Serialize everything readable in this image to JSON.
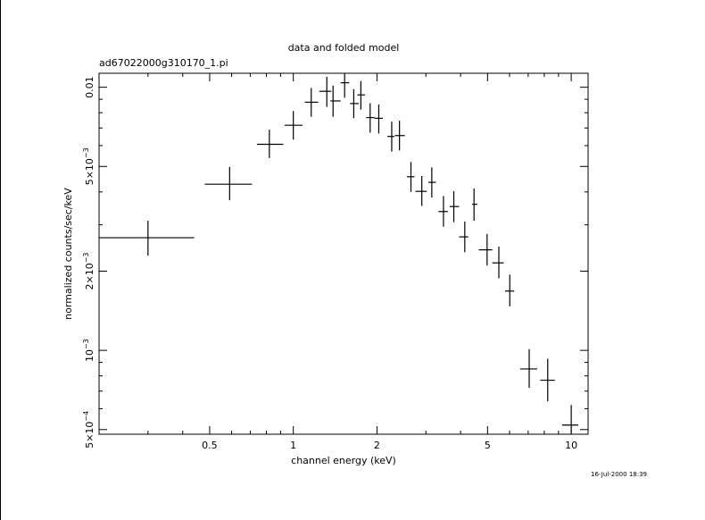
{
  "chart_data": {
    "type": "scatter",
    "title": "data and folded model",
    "subtitle": "ad67022000g310170_1.pi",
    "xlabel": "channel energy (keV)",
    "ylabel": "normalized counts/sec/keV",
    "x_scale": "log",
    "y_scale": "log",
    "xlim": [
      0.2,
      11.5
    ],
    "ylim": [
      0.00048,
      0.0113
    ],
    "grid": false,
    "legend": "none",
    "x_ticks": [
      {
        "value": 0.5,
        "label": "0.5"
      },
      {
        "value": 1,
        "label": "1"
      },
      {
        "value": 2,
        "label": "2"
      },
      {
        "value": 5,
        "label": "5"
      },
      {
        "value": 10,
        "label": "10"
      }
    ],
    "y_ticks": [
      {
        "value": 0.0005,
        "mantissa": "5×10",
        "exponent": "−4"
      },
      {
        "value": 0.001,
        "mantissa": "10",
        "exponent": "−3"
      },
      {
        "value": 0.002,
        "mantissa": "2×10",
        "exponent": "−3"
      },
      {
        "value": 0.005,
        "mantissa": "5×10",
        "exponent": "−3"
      },
      {
        "value": 0.01,
        "mantissa": "0.01",
        "exponent": ""
      }
    ],
    "series": [
      {
        "points": [
          {
            "x": 0.3,
            "x_lo": 0.2,
            "x_hi": 0.44,
            "y": 0.00268,
            "y_lo": 0.00229,
            "y_hi": 0.00311
          },
          {
            "x": 0.59,
            "x_lo": 0.48,
            "x_hi": 0.71,
            "y": 0.00428,
            "y_lo": 0.00372,
            "y_hi": 0.00498
          },
          {
            "x": 0.82,
            "x_lo": 0.74,
            "x_hi": 0.92,
            "y": 0.00607,
            "y_lo": 0.00538,
            "y_hi": 0.0069
          },
          {
            "x": 1.0,
            "x_lo": 0.93,
            "x_hi": 1.08,
            "y": 0.00717,
            "y_lo": 0.00632,
            "y_hi": 0.00812
          },
          {
            "x": 1.16,
            "x_lo": 1.1,
            "x_hi": 1.23,
            "y": 0.00877,
            "y_lo": 0.00772,
            "y_hi": 0.00994
          },
          {
            "x": 1.32,
            "x_lo": 1.24,
            "x_hi": 1.37,
            "y": 0.00965,
            "y_lo": 0.00842,
            "y_hi": 0.01095
          },
          {
            "x": 1.39,
            "x_lo": 1.36,
            "x_hi": 1.48,
            "y": 0.00887,
            "y_lo": 0.00772,
            "y_hi": 0.01015
          },
          {
            "x": 1.53,
            "x_lo": 1.48,
            "x_hi": 1.59,
            "y": 0.0104,
            "y_lo": 0.00912,
            "y_hi": 0.01135
          },
          {
            "x": 1.65,
            "x_lo": 1.6,
            "x_hi": 1.72,
            "y": 0.00867,
            "y_lo": 0.00762,
            "y_hi": 0.00984
          },
          {
            "x": 1.75,
            "x_lo": 1.7,
            "x_hi": 1.81,
            "y": 0.00935,
            "y_lo": 0.00822,
            "y_hi": 0.01055
          },
          {
            "x": 1.89,
            "x_lo": 1.83,
            "x_hi": 1.96,
            "y": 0.00767,
            "y_lo": 0.00672,
            "y_hi": 0.0087
          },
          {
            "x": 2.03,
            "x_lo": 1.96,
            "x_hi": 2.1,
            "y": 0.00762,
            "y_lo": 0.00667,
            "y_hi": 0.0086
          },
          {
            "x": 2.26,
            "x_lo": 2.18,
            "x_hi": 2.31,
            "y": 0.0065,
            "y_lo": 0.00569,
            "y_hi": 0.0074
          },
          {
            "x": 2.41,
            "x_lo": 2.32,
            "x_hi": 2.52,
            "y": 0.00655,
            "y_lo": 0.00575,
            "y_hi": 0.00746
          },
          {
            "x": 2.65,
            "x_lo": 2.56,
            "x_hi": 2.73,
            "y": 0.00457,
            "y_lo": 0.004,
            "y_hi": 0.0052
          },
          {
            "x": 2.9,
            "x_lo": 2.75,
            "x_hi": 3.02,
            "y": 0.00402,
            "y_lo": 0.00354,
            "y_hi": 0.0046
          },
          {
            "x": 3.15,
            "x_lo": 3.06,
            "x_hi": 3.26,
            "y": 0.00435,
            "y_lo": 0.00381,
            "y_hi": 0.00496
          },
          {
            "x": 3.47,
            "x_lo": 3.33,
            "x_hi": 3.6,
            "y": 0.00337,
            "y_lo": 0.00295,
            "y_hi": 0.00386
          },
          {
            "x": 3.78,
            "x_lo": 3.65,
            "x_hi": 3.95,
            "y": 0.00352,
            "y_lo": 0.00307,
            "y_hi": 0.00403
          },
          {
            "x": 4.14,
            "x_lo": 3.95,
            "x_hi": 4.26,
            "y": 0.0027,
            "y_lo": 0.00236,
            "y_hi": 0.00309
          },
          {
            "x": 4.47,
            "x_lo": 4.4,
            "x_hi": 4.59,
            "y": 0.00359,
            "y_lo": 0.00311,
            "y_hi": 0.00412
          },
          {
            "x": 4.98,
            "x_lo": 4.65,
            "x_hi": 5.2,
            "y": 0.00241,
            "y_lo": 0.0021,
            "y_hi": 0.00277
          },
          {
            "x": 5.49,
            "x_lo": 5.2,
            "x_hi": 5.72,
            "y": 0.00215,
            "y_lo": 0.00188,
            "y_hi": 0.00248
          },
          {
            "x": 6.01,
            "x_lo": 5.78,
            "x_hi": 6.24,
            "y": 0.00168,
            "y_lo": 0.00147,
            "y_hi": 0.00194
          },
          {
            "x": 7.06,
            "x_lo": 6.55,
            "x_hi": 7.55,
            "y": 0.00085,
            "y_lo": 0.00072,
            "y_hi": 0.00101
          },
          {
            "x": 8.23,
            "x_lo": 7.74,
            "x_hi": 8.73,
            "y": 0.00077,
            "y_lo": 0.00064,
            "y_hi": 0.00093
          },
          {
            "x": 10.0,
            "x_lo": 9.27,
            "x_hi": 10.6,
            "y": 0.00052,
            "y_lo": 0.00042,
            "y_hi": 0.00062
          }
        ]
      }
    ]
  },
  "footer": {
    "timestamp": "16-Jul-2000 18:39"
  }
}
